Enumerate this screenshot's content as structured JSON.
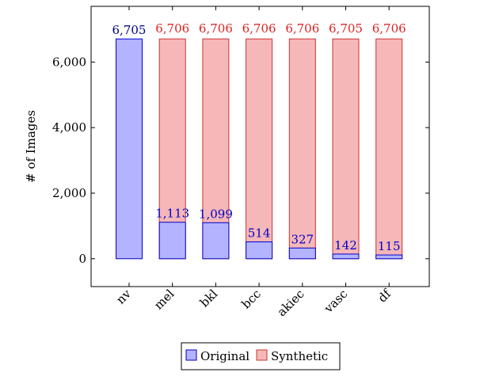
{
  "chart_data": {
    "type": "bar",
    "stacking": "overlaid",
    "categories": [
      "nv",
      "mel",
      "bkl",
      "bcc",
      "akiec",
      "vasc",
      "df"
    ],
    "series": [
      {
        "name": "Original",
        "values": [
          6705,
          1113,
          1099,
          514,
          327,
          142,
          115
        ],
        "fill": "#b3b3ff",
        "stroke": "#0000cc",
        "label_color": "#0000cc"
      },
      {
        "name": "Synthetic",
        "values": [
          null,
          6706,
          6706,
          6706,
          6706,
          6705,
          6706
        ],
        "fill": "#f5b7b7",
        "stroke": "#cc3333",
        "label_color": "#dd2222"
      }
    ],
    "original_labels": [
      "6,705",
      "1,113",
      "1,099",
      "514",
      "327",
      "142",
      "115"
    ],
    "synthetic_labels": [
      "",
      "6,706",
      "6,706",
      "6,706",
      "6,706",
      "6,705",
      "6,706"
    ],
    "top_label_color_nv": "#000080",
    "ylabel": "# of Images",
    "ylim": [
      -850,
      7700
    ],
    "yticks": [
      0,
      2000,
      4000,
      6000
    ],
    "ytick_labels": [
      "0",
      "2,000",
      "4,000",
      "6,000"
    ],
    "grid": false,
    "legend": {
      "placement": "bottom-center",
      "entries": [
        "Original",
        "Synthetic"
      ]
    }
  }
}
